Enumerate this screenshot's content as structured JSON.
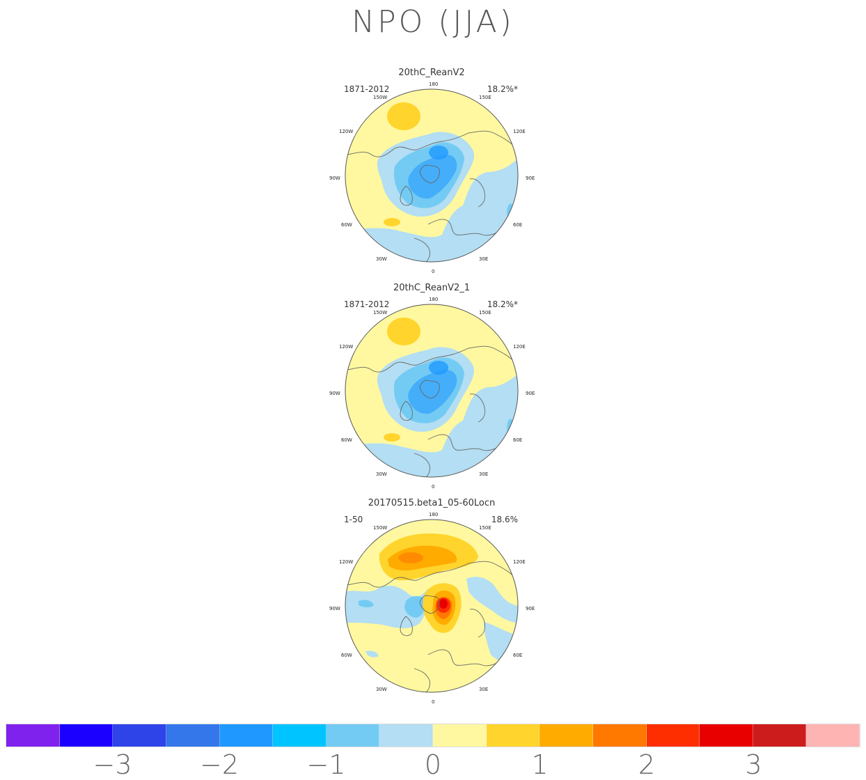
{
  "title": "NPO (JJA)",
  "panels": [
    {
      "name": "20thC_ReanV2",
      "period": "1871-2012",
      "variance": "18.2%*"
    },
    {
      "name": "20thC_ReanV2_1",
      "period": "1871-2012",
      "variance": "18.2%*"
    },
    {
      "name": "20170515.beta1_05-60Locn",
      "period": "1-50",
      "variance": "18.6%"
    }
  ],
  "longitude_labels": {
    "top": "180",
    "bottom": "0",
    "w150": "150W",
    "e150": "150E",
    "w120": "120W",
    "e120": "120E",
    "w90": "90W",
    "e90": "90E",
    "w60": "60W",
    "e60": "60E",
    "w30": "30W",
    "e30": "30E"
  },
  "colorbar": {
    "colors": [
      "#8022ee",
      "#1b00ff",
      "#2e44e8",
      "#3377ea",
      "#1f98ff",
      "#00c4ff",
      "#73cbf4",
      "#b3def3",
      "#fff8a0",
      "#ffd42c",
      "#ffab00",
      "#ff7800",
      "#ff2e00",
      "#e80000",
      "#cc1c1c",
      "#ffb4b4"
    ],
    "tick_labels": [
      "−3",
      "−2",
      "−1",
      "0",
      "1",
      "2",
      "3"
    ]
  }
}
